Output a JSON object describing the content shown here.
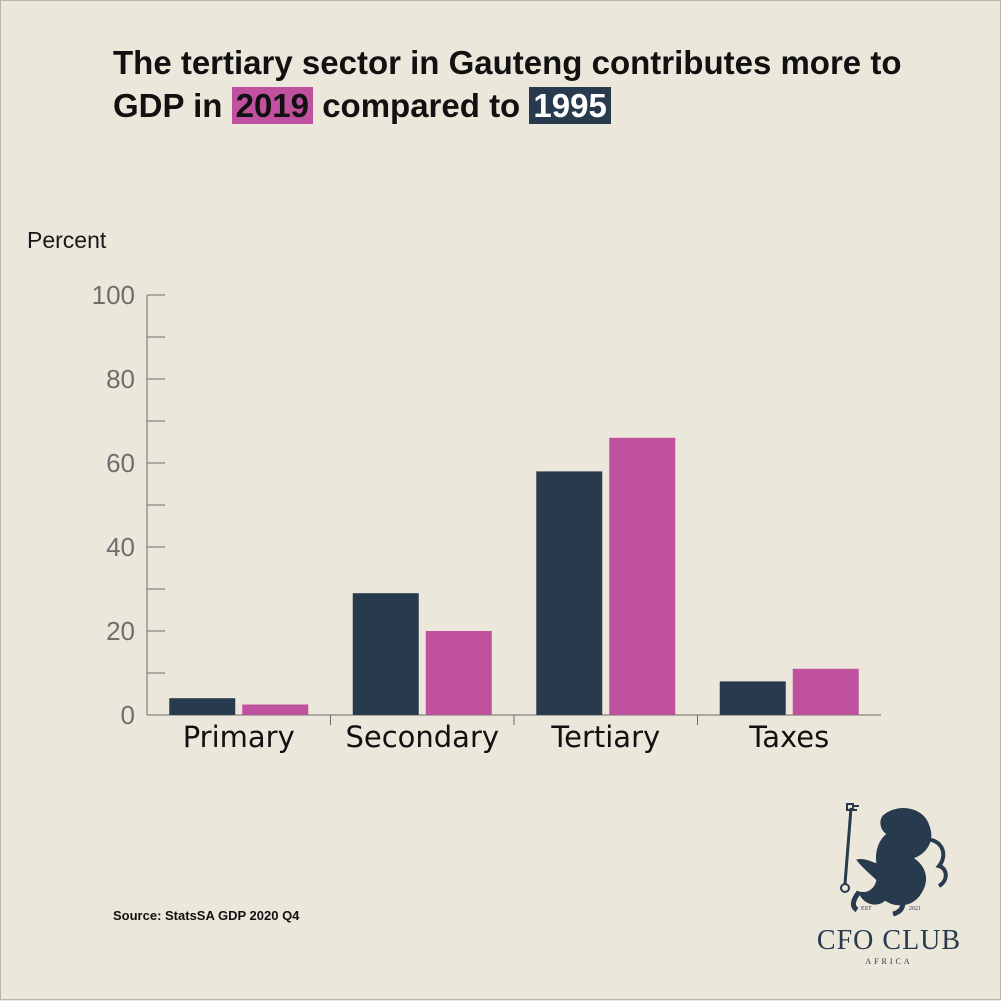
{
  "header": {
    "title_part1": "The tertiary sector in Gauteng contributes more to GDP in",
    "year_2019": "2019",
    "title_part2": "compared to",
    "year_1995": "1995"
  },
  "source": "Source: StatsSA GDP 2020 Q4",
  "logo": {
    "name": "CFO CLUB",
    "subtitle": "AFRICA",
    "est_label": "EST",
    "est_year": "2021",
    "icon": "lion-rampant-icon"
  },
  "colors": {
    "background": "#ece7db",
    "series_1995": "#283a4d",
    "series_2019": "#c0519f"
  },
  "chart_data": {
    "type": "bar",
    "title": "The tertiary sector in Gauteng contributes more to GDP in 2019 compared to 1995",
    "ylabel": "Percent",
    "xlabel": "",
    "categories": [
      "Primary",
      "Secondary",
      "Tertiary",
      "Taxes"
    ],
    "series": [
      {
        "name": "1995",
        "values": [
          4,
          29,
          58,
          8
        ]
      },
      {
        "name": "2019",
        "values": [
          2.5,
          20,
          66,
          11
        ]
      }
    ],
    "ylim": [
      0,
      100
    ],
    "yticks": [
      0,
      20,
      40,
      60,
      80,
      100
    ],
    "grid": false,
    "legend": "none"
  }
}
